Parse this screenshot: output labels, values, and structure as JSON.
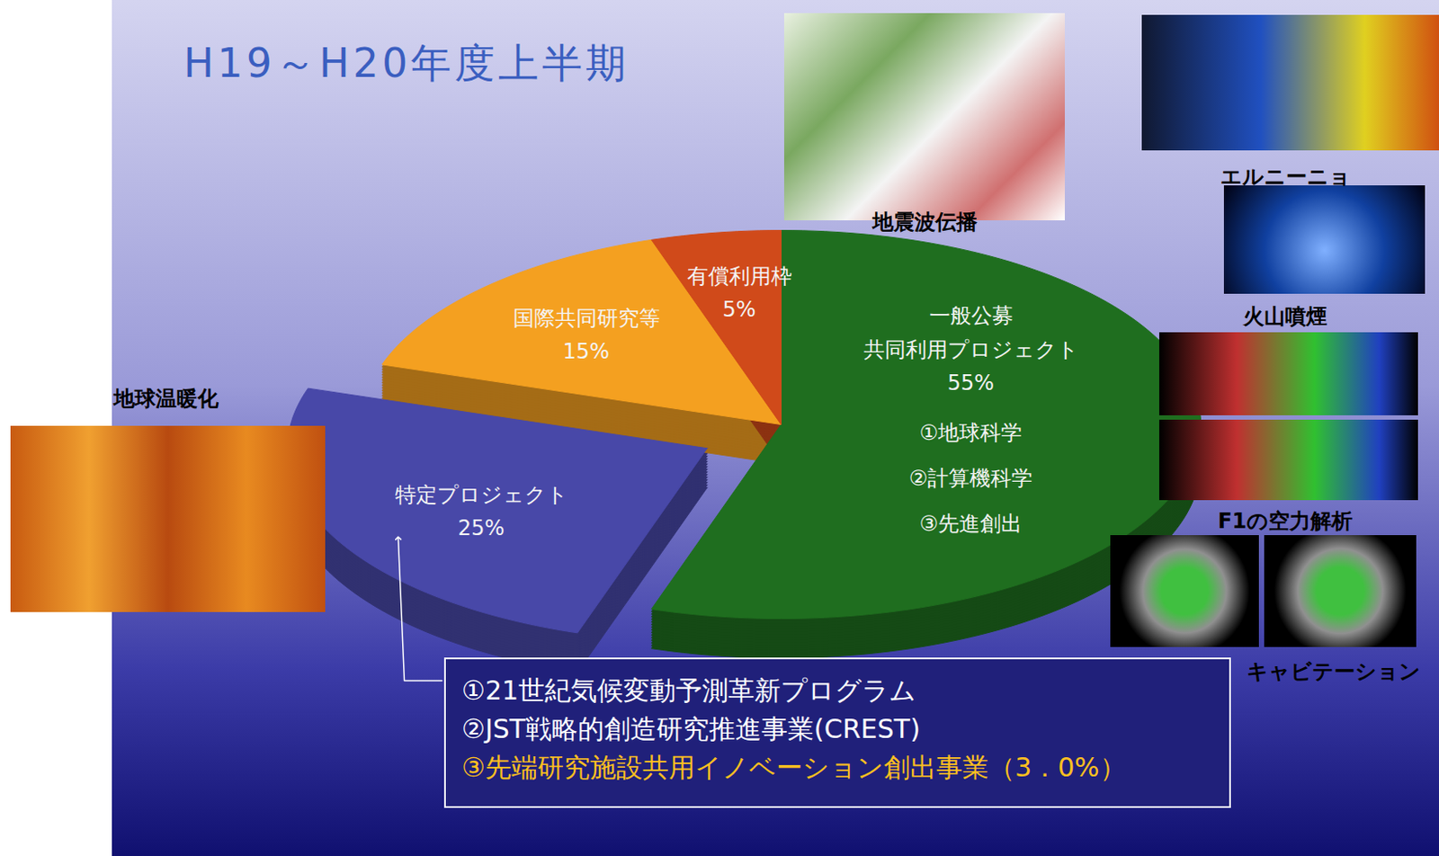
{
  "chart_data": {
    "type": "pie",
    "title": "H19～H20年度上半期",
    "categories": [
      "一般公募\n共同利用プロジェクト",
      "特定プロジェクト",
      "国際共同研究等",
      "有償利用枠"
    ],
    "values": [
      55,
      25,
      15,
      5
    ],
    "value_labels": [
      "55%",
      "25%",
      "15%",
      "5%"
    ],
    "colors": [
      "#1f6e1f",
      "#4848a8",
      "#f4a020",
      "#d04a1a"
    ],
    "data_labels": true,
    "sub_items": [
      "①地球科学",
      "②計算機科学",
      "③先進創出"
    ],
    "note_box": [
      "①21世紀気候変動予測革新プログラム",
      "②JST戦略的創造研究推進事業(CREST)",
      "③先端研究施設共用イノベーション創出事業（3．0%）"
    ],
    "image_captions": [
      "地球温暖化",
      "地震波伝播",
      "エルニーニョ",
      "火山噴煙",
      "F1の空力解析",
      "キャビテーション"
    ]
  }
}
